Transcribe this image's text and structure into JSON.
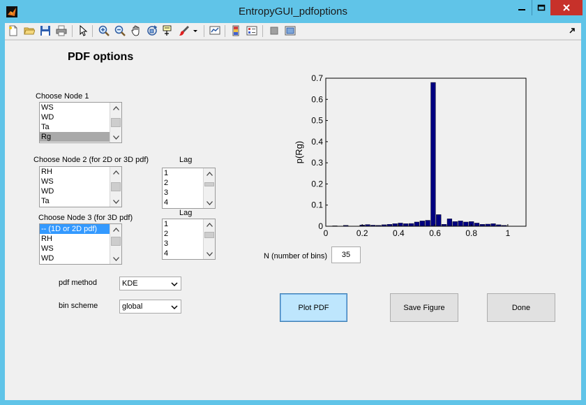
{
  "window": {
    "title": "EntropyGUI_pdfoptions",
    "accent": "#60c4e8",
    "close_color": "#c7312a"
  },
  "toolbar": {
    "icons": [
      "new-file-icon",
      "open-folder-icon",
      "save-icon",
      "print-icon",
      "pointer-icon",
      "zoom-in-icon",
      "zoom-out-icon",
      "pan-hand-icon",
      "rotate-3d-icon",
      "data-cursor-icon",
      "brush-icon",
      "dropdown-arrow-icon",
      "link-plot-icon",
      "colorbar-icon",
      "legend-icon",
      "hide-plot-tools-icon",
      "show-plot-tools-icon"
    ]
  },
  "form": {
    "heading": "PDF options",
    "node1": {
      "label": "Choose Node 1",
      "items": [
        "WS",
        "WD",
        "Ta",
        "Rg"
      ],
      "selected": "Rg"
    },
    "node2": {
      "label": "Choose Node  2 (for 2D or 3D pdf)",
      "items": [
        "RH",
        "WS",
        "WD",
        "Ta"
      ]
    },
    "lag1": {
      "label": "Lag",
      "items": [
        "1",
        "2",
        "3",
        "4"
      ]
    },
    "node3": {
      "label": "Choose Node 3 (for 3D pdf)",
      "items": [
        "-- (1D or 2D pdf)",
        "RH",
        "WS",
        "WD"
      ],
      "selected": "-- (1D or 2D pdf)"
    },
    "lag2": {
      "label": "Lag",
      "items": [
        "1",
        "2",
        "3",
        "4"
      ]
    },
    "pdf_method": {
      "label": "pdf method",
      "value": "KDE"
    },
    "bin_scheme": {
      "label": "bin scheme",
      "value": "global"
    },
    "nbins": {
      "label": "N (number of bins)",
      "value": "35"
    }
  },
  "buttons": {
    "plot": "Plot PDF",
    "save": "Save Figure",
    "done": "Done"
  },
  "chart_data": {
    "type": "bar",
    "xlabel": "Rg",
    "ylabel": "p(Rg)",
    "xlim": [
      0,
      1.1
    ],
    "ylim": [
      0,
      0.7
    ],
    "xticks": [
      "0",
      "0.2",
      "0.4",
      "0.6",
      "0.8",
      "1"
    ],
    "yticks": [
      "0",
      "0.1",
      "0.2",
      "0.3",
      "0.4",
      "0.5",
      "0.6",
      "0.7"
    ],
    "bar_color": "#000080",
    "grid": false,
    "x": [
      0.02,
      0.05,
      0.08,
      0.11,
      0.14,
      0.17,
      0.2,
      0.23,
      0.26,
      0.29,
      0.32,
      0.35,
      0.38,
      0.41,
      0.44,
      0.47,
      0.5,
      0.53,
      0.56,
      0.59,
      0.62,
      0.65,
      0.68,
      0.71,
      0.74,
      0.77,
      0.8,
      0.83,
      0.86,
      0.89,
      0.92,
      0.95,
      0.98,
      1.01,
      1.04
    ],
    "values": [
      0.001,
      0.002,
      0.0,
      0.004,
      0.0,
      0.0,
      0.006,
      0.008,
      0.005,
      0.004,
      0.007,
      0.009,
      0.012,
      0.015,
      0.012,
      0.013,
      0.02,
      0.025,
      0.028,
      0.68,
      0.055,
      0.009,
      0.035,
      0.022,
      0.025,
      0.02,
      0.022,
      0.015,
      0.009,
      0.01,
      0.012,
      0.007,
      0.004,
      0.0,
      0.0
    ]
  }
}
